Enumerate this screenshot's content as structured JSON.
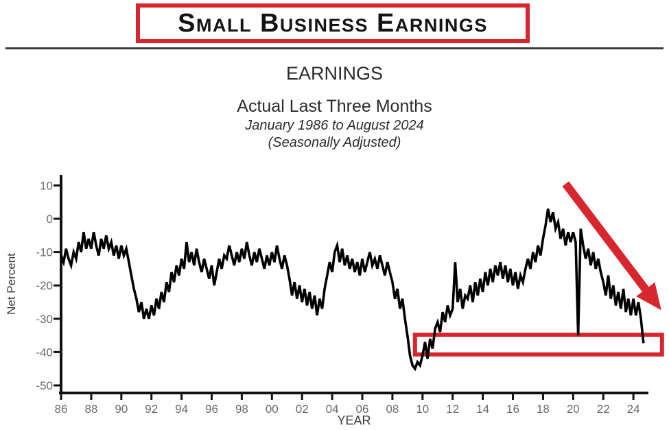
{
  "banner": {
    "title": "Small Business Earnings"
  },
  "colors": {
    "accent_red": "#d7262e",
    "line_black": "#000000",
    "axis": "#111111",
    "tick_label": "#6b6b6b",
    "axis_label": "#3a3a3a",
    "divider": "#3d3d3d"
  },
  "chart_data": {
    "type": "line",
    "title": "EARNINGS",
    "subtitle": "Actual Last Three Months",
    "period": "January 1986 to August 2024",
    "note": "(Seasonally Adjusted)",
    "xlabel": "YEAR",
    "ylabel": "Net Percent",
    "x_start": 1986,
    "points_per_year": 6,
    "ylim": [
      -52,
      12
    ],
    "y_ticks": [
      10,
      0,
      -10,
      -20,
      -30,
      -40,
      -50
    ],
    "x_ticks": [
      [
        "86",
        1986
      ],
      [
        "88",
        1988
      ],
      [
        "90",
        1990
      ],
      [
        "92",
        1992
      ],
      [
        "94",
        1994
      ],
      [
        "96",
        1996
      ],
      [
        "98",
        1998
      ],
      [
        "00",
        2000
      ],
      [
        "02",
        2002
      ],
      [
        "04",
        2004
      ],
      [
        "06",
        2006
      ],
      [
        "08",
        2008
      ],
      [
        "10",
        2010
      ],
      [
        "12",
        2012
      ],
      [
        "14",
        2014
      ],
      [
        "16",
        2016
      ],
      [
        "18",
        2018
      ],
      [
        "20",
        2020
      ],
      [
        "22",
        2022
      ],
      [
        "24",
        2024
      ]
    ],
    "series": [
      {
        "name": "Actual earnings last three months, net percent",
        "values": [
          -11,
          -13,
          -9,
          -12,
          -14,
          -10,
          -12,
          -7,
          -10,
          -4,
          -9,
          -6,
          -9,
          -4,
          -8,
          -11,
          -6,
          -9,
          -5,
          -9,
          -7,
          -11,
          -8,
          -12,
          -8,
          -11,
          -9,
          -13,
          -17,
          -21,
          -24,
          -28,
          -25,
          -30,
          -27,
          -30,
          -26,
          -29,
          -24,
          -27,
          -22,
          -25,
          -19,
          -22,
          -16,
          -19,
          -14,
          -17,
          -12,
          -15,
          -7,
          -13,
          -10,
          -14,
          -9,
          -13,
          -16,
          -12,
          -15,
          -18,
          -14,
          -20,
          -16,
          -12,
          -15,
          -11,
          -12,
          -8,
          -11,
          -14,
          -10,
          -13,
          -9,
          -12,
          -7,
          -11,
          -14,
          -10,
          -13,
          -9,
          -12,
          -15,
          -11,
          -14,
          -10,
          -13,
          -8,
          -12,
          -15,
          -11,
          -14,
          -18,
          -23,
          -19,
          -24,
          -20,
          -25,
          -21,
          -26,
          -22,
          -27,
          -23,
          -29,
          -24,
          -27,
          -21,
          -17,
          -13,
          -16,
          -10,
          -8,
          -13,
          -9,
          -14,
          -11,
          -15,
          -12,
          -16,
          -13,
          -17,
          -12,
          -16,
          -13,
          -10,
          -14,
          -12,
          -15,
          -11,
          -14,
          -17,
          -13,
          -16,
          -19,
          -24,
          -21,
          -27,
          -24,
          -30,
          -35,
          -41,
          -44,
          -45,
          -43,
          -44,
          -41,
          -37,
          -42,
          -36,
          -39,
          -33,
          -31,
          -34,
          -28,
          -31,
          -26,
          -29,
          -27,
          -13,
          -25,
          -21,
          -27,
          -23,
          -24,
          -20,
          -25,
          -19,
          -23,
          -18,
          -22,
          -16,
          -20,
          -15,
          -19,
          -14,
          -17,
          -13,
          -18,
          -14,
          -19,
          -15,
          -20,
          -16,
          -21,
          -17,
          -19,
          -15,
          -12,
          -15,
          -10,
          -13,
          -8,
          -11,
          -6,
          -2,
          3,
          -1,
          2,
          -3,
          -1,
          -6,
          -3,
          -8,
          -4,
          -7,
          -4,
          -7,
          -35,
          -3,
          -8,
          -12,
          -9,
          -14,
          -10,
          -15,
          -12,
          -16,
          -19,
          -23,
          -17,
          -24,
          -20,
          -26,
          -22,
          -27,
          -21,
          -28,
          -24,
          -29,
          -24,
          -29,
          -25,
          -30,
          -37
        ]
      }
    ],
    "annotations": {
      "highlight_box": {
        "x1": 2009.5,
        "x2": 2025.9,
        "v1": -34.8,
        "v2": -40.7
      },
      "trend_arrow": {
        "x1": 2019.5,
        "v1": 10.5,
        "x2": 2025.85,
        "v2": -27.4
      }
    }
  }
}
